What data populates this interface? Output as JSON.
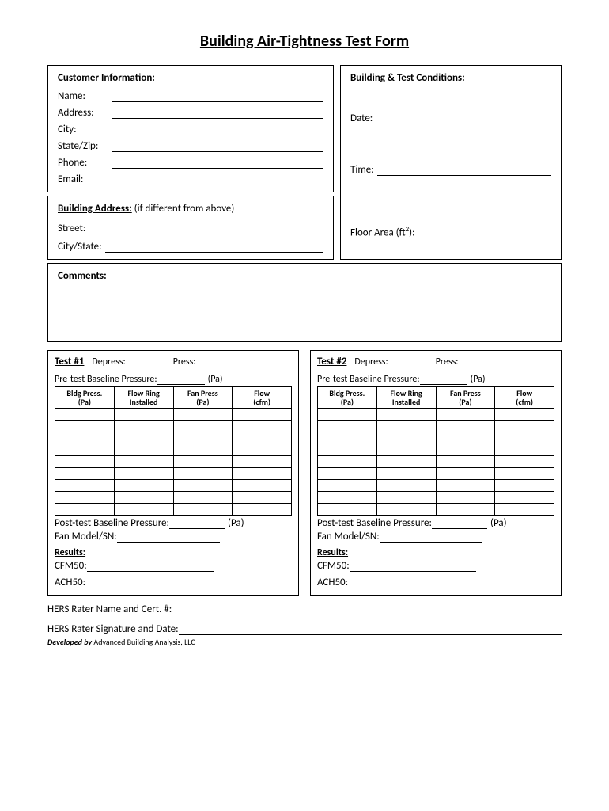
{
  "title": "Building Air-Tightness Test Form",
  "customer": {
    "heading": "Customer Information:",
    "fields": {
      "name": "Name:",
      "address": "Address:",
      "city": "City:",
      "statezip": "State/Zip:",
      "phone": "Phone:",
      "email": "Email:"
    }
  },
  "building_address": {
    "heading": "Building Address:",
    "heading_suffix": " (if different from above)",
    "street": "Street:",
    "citystate": "City/State:"
  },
  "conditions": {
    "heading": "Building & Test Conditions:",
    "date": "Date:",
    "time": "Time:",
    "floor_area_prefix": "Floor Area (ft",
    "floor_area_sup": "2",
    "floor_area_suffix": "):"
  },
  "comments_heading": "Comments:",
  "tests": [
    {
      "title": "Test #1"
    },
    {
      "title": "Test #2"
    }
  ],
  "test_labels": {
    "depress": "Depress:",
    "press": "Press:",
    "pretest": "Pre-test Baseline Pressure:",
    "pa": "(Pa)",
    "posttest": "Post-test Baseline Pressure:",
    "fan_model": "Fan Model/SN:",
    "results": "Results:",
    "cfm50": "CFM50:",
    "ach50": "ACH50:"
  },
  "table_headers": {
    "col1a": "Bldg Press.",
    "col1b": "(Pa)",
    "col2a": "Flow Ring",
    "col2b": "Installed",
    "col3a": "Fan Press",
    "col3b": "(Pa)",
    "col4a": "Flow",
    "col4b": "(cfm)"
  },
  "table_row_count": 9,
  "footer": {
    "hers_name": "HERS Rater Name and Cert. #: ",
    "hers_sig": "HERS Rater Signature and Date:",
    "developed_bold": "Developed by ",
    "developed_rest": "Advanced Building Analysis, LLC"
  }
}
